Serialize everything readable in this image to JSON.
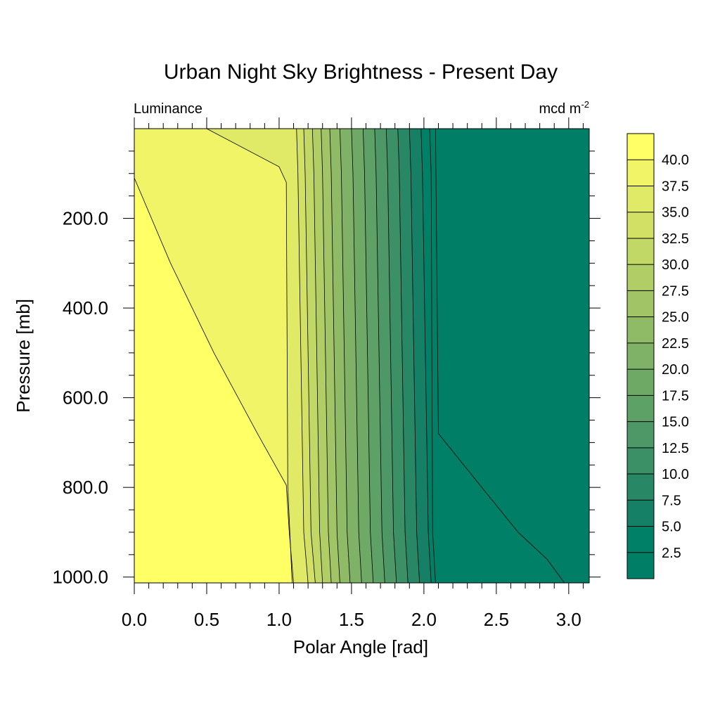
{
  "chart_data": {
    "type": "heatmap",
    "title": "Urban Night Sky Brightness - Present Day",
    "left_string": "Luminance",
    "right_string": "mcd m",
    "right_string_superscript": "-2",
    "xlabel": "Polar Angle [rad]",
    "ylabel": "Pressure [mb]",
    "xlim": [
      0,
      3.14159
    ],
    "ylim": [
      0,
      1013
    ],
    "y_inverted": true,
    "x_ticks": [
      "0.0",
      "0.5",
      "1.0",
      "1.5",
      "2.0",
      "2.5",
      "3.0"
    ],
    "x_tick_values": [
      0,
      0.5,
      1.0,
      1.5,
      2.0,
      2.5,
      3.0
    ],
    "y_ticks": [
      "200.0",
      "400.0",
      "600.0",
      "800.0",
      "1000.0"
    ],
    "y_tick_values": [
      200,
      400,
      600,
      800,
      1000
    ],
    "colorbar_labels": [
      "40.0",
      "37.5",
      "35.0",
      "32.5",
      "30.0",
      "27.5",
      "25.0",
      "22.5",
      "20.0",
      "17.5",
      "15.0",
      "12.5",
      "10.0",
      "7.5",
      "5.0",
      "2.5"
    ],
    "colorbar_levels": [
      40.0,
      37.5,
      35.0,
      32.5,
      30.0,
      27.5,
      25.0,
      22.5,
      20.0,
      17.5,
      15.0,
      12.5,
      10.0,
      7.5,
      5.0,
      2.5
    ],
    "colorbar_colors": [
      "#ffff66",
      "#f0f466",
      "#e1ea66",
      "#d2e066",
      "#c1d766",
      "#b1ce66",
      "#a0c466",
      "#90bb66",
      "#7fb266",
      "#6eaa66",
      "#5ea166",
      "#4d9866",
      "#3b9066",
      "#288866",
      "#158066",
      "#008066",
      "#007f66"
    ],
    "contours": [
      {
        "level": 40.0,
        "x": [
          0.5,
          1.0,
          1.05,
          1.06,
          1.09
        ],
        "y": [
          0,
          85,
          120,
          800,
          1013
        ]
      },
      {
        "level": 37.5,
        "x": [
          0,
          0.25,
          0.55,
          0.85,
          1.05,
          1.07,
          1.1
        ],
        "y": [
          110,
          300,
          500,
          680,
          795,
          900,
          1013
        ]
      },
      {
        "level": 35.0,
        "x": [
          1.12,
          1.13,
          1.17,
          1.2
        ],
        "y": [
          0,
          100,
          900,
          1013
        ]
      },
      {
        "level": 32.5,
        "x": [
          1.17,
          1.18,
          1.22,
          1.25
        ],
        "y": [
          0,
          100,
          900,
          1013
        ]
      },
      {
        "level": 30.0,
        "x": [
          1.23,
          1.24,
          1.28,
          1.3
        ],
        "y": [
          0,
          100,
          900,
          1013
        ]
      },
      {
        "level": 27.5,
        "x": [
          1.29,
          1.3,
          1.34,
          1.36
        ],
        "y": [
          0,
          100,
          900,
          1013
        ]
      },
      {
        "level": 25.0,
        "x": [
          1.35,
          1.36,
          1.4,
          1.42
        ],
        "y": [
          0,
          100,
          900,
          1013
        ]
      },
      {
        "level": 22.5,
        "x": [
          1.42,
          1.43,
          1.47,
          1.49
        ],
        "y": [
          0,
          100,
          900,
          1013
        ]
      },
      {
        "level": 20.0,
        "x": [
          1.5,
          1.51,
          1.55,
          1.57
        ],
        "y": [
          0,
          100,
          900,
          1013
        ]
      },
      {
        "level": 17.5,
        "x": [
          1.58,
          1.59,
          1.63,
          1.65
        ],
        "y": [
          0,
          100,
          900,
          1013
        ]
      },
      {
        "level": 15.0,
        "x": [
          1.66,
          1.67,
          1.71,
          1.73
        ],
        "y": [
          0,
          100,
          900,
          1013
        ]
      },
      {
        "level": 12.5,
        "x": [
          1.74,
          1.75,
          1.79,
          1.81
        ],
        "y": [
          0,
          100,
          900,
          1013
        ]
      },
      {
        "level": 10.0,
        "x": [
          1.82,
          1.83,
          1.87,
          1.89
        ],
        "y": [
          0,
          100,
          900,
          1013
        ]
      },
      {
        "level": 7.5,
        "x": [
          1.9,
          1.91,
          1.95,
          1.97
        ],
        "y": [
          0,
          100,
          900,
          1013
        ]
      },
      {
        "level": 5.0,
        "x": [
          1.98,
          1.99,
          2.03,
          2.05
        ],
        "y": [
          0,
          100,
          900,
          1013
        ]
      },
      {
        "level": 2.5,
        "x": [
          2.04,
          2.05,
          2.06,
          2.08
        ],
        "y": [
          0,
          100,
          900,
          1013
        ]
      },
      {
        "level": 0.0,
        "x": [
          2.08,
          2.1,
          2.4,
          2.65,
          2.85,
          2.97
        ],
        "y": [
          0,
          680,
          800,
          900,
          960,
          1013
        ]
      }
    ]
  }
}
